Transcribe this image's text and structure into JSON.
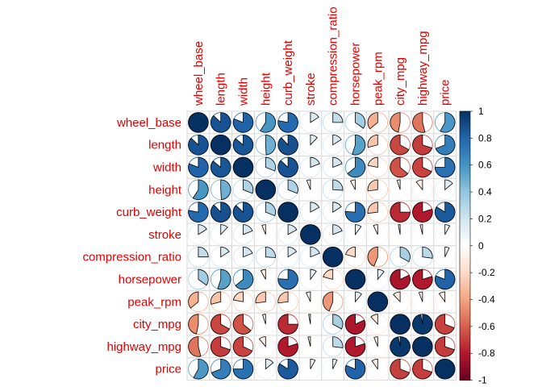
{
  "chart_data": {
    "type": "heatmap",
    "subtype": "correlation matrix (pie glyphs)",
    "variables": [
      "wheel_base",
      "length",
      "width",
      "height",
      "curb_weight",
      "stroke",
      "compression_ratio",
      "horsepower",
      "peak_rpm",
      "city_mpg",
      "highway_mpg",
      "price"
    ],
    "matrix": [
      [
        1.0,
        0.87,
        0.81,
        0.59,
        0.78,
        0.16,
        0.25,
        0.35,
        -0.36,
        -0.47,
        -0.54,
        0.58
      ],
      [
        0.87,
        1.0,
        0.86,
        0.49,
        0.88,
        0.12,
        0.16,
        0.55,
        -0.29,
        -0.67,
        -0.7,
        0.69
      ],
      [
        0.81,
        0.86,
        1.0,
        0.31,
        0.87,
        0.19,
        0.19,
        0.64,
        -0.22,
        -0.64,
        -0.68,
        0.75
      ],
      [
        0.59,
        0.49,
        0.31,
        1.0,
        0.31,
        -0.06,
        0.26,
        -0.08,
        -0.27,
        -0.05,
        -0.11,
        0.14
      ],
      [
        0.78,
        0.88,
        0.87,
        0.31,
        1.0,
        0.17,
        0.16,
        0.76,
        -0.27,
        -0.75,
        -0.8,
        0.84
      ],
      [
        0.16,
        0.12,
        0.19,
        -0.06,
        0.17,
        1.0,
        0.19,
        0.1,
        -0.07,
        -0.03,
        -0.04,
        0.08
      ],
      [
        0.25,
        0.16,
        0.19,
        0.26,
        0.16,
        0.19,
        1.0,
        -0.21,
        -0.44,
        0.33,
        0.27,
        0.07
      ],
      [
        0.35,
        0.55,
        0.64,
        -0.08,
        0.76,
        0.1,
        -0.21,
        1.0,
        0.11,
        -0.82,
        -0.8,
        0.81
      ],
      [
        -0.36,
        -0.29,
        -0.22,
        -0.27,
        -0.27,
        -0.07,
        -0.44,
        0.11,
        1.0,
        -0.12,
        -0.06,
        -0.1
      ],
      [
        -0.47,
        -0.67,
        -0.64,
        -0.05,
        -0.75,
        -0.03,
        0.33,
        -0.82,
        -0.12,
        1.0,
        0.97,
        -0.69
      ],
      [
        -0.54,
        -0.7,
        -0.68,
        -0.11,
        -0.8,
        -0.04,
        0.27,
        -0.8,
        -0.06,
        0.97,
        1.0,
        -0.7
      ],
      [
        0.58,
        0.69,
        0.75,
        0.14,
        0.84,
        0.08,
        0.07,
        0.81,
        -0.1,
        -0.69,
        -0.7,
        1.0
      ]
    ],
    "colorbar": {
      "range": [
        -1,
        1
      ],
      "ticks": [
        "1",
        "0.8",
        "0.6",
        "0.4",
        "0.2",
        "0",
        "-0.2",
        "-0.4",
        "-0.6",
        "-0.8",
        "-1"
      ],
      "colors": [
        "#67001F",
        "#B2182B",
        "#D6604D",
        "#F4A582",
        "#FDDBC7",
        "#FFFFFF",
        "#D1E5F0",
        "#92C5DE",
        "#4393C3",
        "#2166AC",
        "#053061"
      ]
    },
    "label_color": "#E00000",
    "title": "",
    "xlabel": "",
    "ylabel": "",
    "legend": "right"
  }
}
